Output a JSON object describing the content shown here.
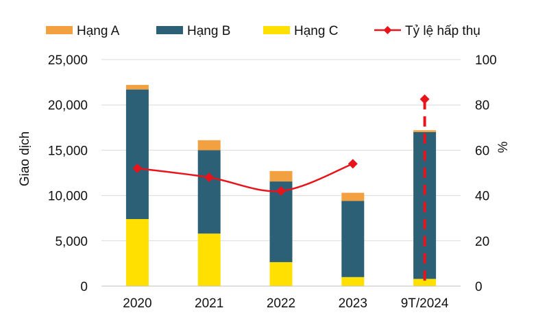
{
  "chart_data": {
    "type": "bar",
    "stacked": true,
    "categories": [
      "2020",
      "2021",
      "2022",
      "2023",
      "9T/2024"
    ],
    "series": [
      {
        "name": "Hạng C",
        "color": "#FFE000",
        "values": [
          7400,
          5800,
          2650,
          1000,
          800
        ]
      },
      {
        "name": "Hạng B",
        "color": "#2B6076",
        "values": [
          14300,
          9200,
          8900,
          8400,
          16200
        ]
      },
      {
        "name": "Hạng A",
        "color": "#F2A040",
        "values": [
          500,
          1100,
          1150,
          900,
          200
        ]
      }
    ],
    "line_series": {
      "name": "Tỷ lệ hấp thụ",
      "color": "#E8141B",
      "axis": "right",
      "values": [
        52,
        48,
        42,
        54,
        82.5
      ],
      "dashed_segment": "last"
    },
    "legend_order": [
      "Hạng A",
      "Hạng B",
      "Hạng C",
      "Tỷ lệ hấp thụ"
    ],
    "legend_position": "top",
    "ylabel": "Giao dịch",
    "ylabel_right": "%",
    "ylim": [
      0,
      25000
    ],
    "yticks": [
      "0",
      "5,000",
      "10,000",
      "15,000",
      "20,000",
      "25,000"
    ],
    "ylim_right": [
      0,
      100
    ],
    "yticks_right": [
      "0",
      "20",
      "40",
      "60",
      "80",
      "100"
    ],
    "grid": true
  }
}
